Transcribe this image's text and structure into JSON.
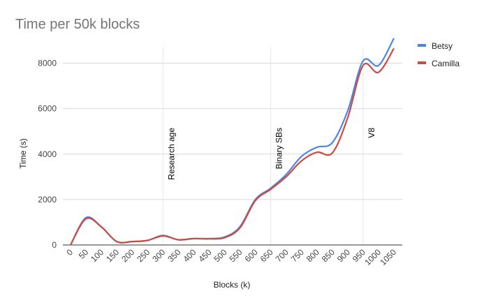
{
  "chart_data": {
    "type": "line",
    "title": "Time per 50k blocks",
    "xlabel": "Blocks (k)",
    "ylabel": "Time (s)",
    "x": [
      0,
      50,
      100,
      150,
      200,
      250,
      300,
      350,
      400,
      450,
      500,
      550,
      600,
      650,
      700,
      750,
      800,
      850,
      900,
      950,
      1000,
      1050
    ],
    "ylim": [
      0,
      9000
    ],
    "yticks": [
      0,
      2000,
      4000,
      6000,
      8000
    ],
    "series": [
      {
        "name": "Betsy",
        "color": "#4a86e8",
        "values": [
          0,
          1200,
          800,
          150,
          150,
          200,
          420,
          230,
          280,
          280,
          350,
          800,
          2000,
          2500,
          3100,
          3900,
          4300,
          4500,
          5900,
          8100,
          7900,
          9100
        ]
      },
      {
        "name": "Camilla",
        "color": "#cc4b43",
        "values": [
          0,
          1150,
          800,
          150,
          150,
          200,
          400,
          230,
          280,
          270,
          320,
          750,
          1950,
          2450,
          3000,
          3700,
          4080,
          4050,
          5600,
          7900,
          7600,
          8650
        ]
      }
    ],
    "annotations": [
      {
        "x": 300,
        "label": "Research age"
      },
      {
        "x": 650,
        "label": "Binary SBs"
      },
      {
        "x": 950,
        "label": "V8"
      }
    ],
    "legend_position": "top-right",
    "grid": true
  }
}
